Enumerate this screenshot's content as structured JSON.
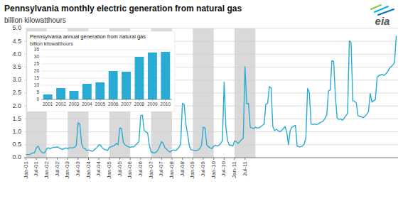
{
  "chart_data": [
    {
      "type": "line",
      "title": "Pennsylvania monthly electric generation from natural gas",
      "ylabel": "billion kilowatthours",
      "annotations": [
        "eia"
      ],
      "color": "#29ABD4",
      "grid": true,
      "ylim": [
        0,
        5.0
      ],
      "yticks": [
        {
          "value": 0.0,
          "label": "0.0"
        },
        {
          "value": 0.5,
          "label": "0.5"
        },
        {
          "value": 1.0,
          "label": "1.0"
        },
        {
          "value": 1.5,
          "label": "1.5"
        },
        {
          "value": 2.0,
          "label": "2.0"
        },
        {
          "value": 2.5,
          "label": "2.5"
        },
        {
          "value": 3.0,
          "label": "3.0"
        },
        {
          "value": 3.5,
          "label": "3.5"
        },
        {
          "value": 4.0,
          "label": "4.0"
        },
        {
          "value": 4.5,
          "label": "4.5"
        },
        {
          "value": 5.0,
          "label": "5.0"
        }
      ],
      "bands": [
        {
          "from": 0,
          "to": 12,
          "color": "#d9d9d9"
        },
        {
          "from": 24,
          "to": 36,
          "color": "#d9d9d9"
        },
        {
          "from": 48,
          "to": 60,
          "color": "#d9d9d9"
        },
        {
          "from": 72,
          "to": 84,
          "color": "#d9d9d9"
        },
        {
          "from": 96,
          "to": 108,
          "color": "#d9d9d9"
        },
        {
          "from": 120,
          "to": 132,
          "color": "#d9d9d9"
        }
      ],
      "categories": [
        "Jan-01",
        null,
        null,
        null,
        null,
        null,
        "Jul-01",
        null,
        null,
        null,
        null,
        null,
        "Jan-02",
        null,
        null,
        null,
        null,
        null,
        "Jul-02",
        null,
        null,
        null,
        null,
        null,
        "Jan-03",
        null,
        null,
        null,
        null,
        null,
        "Jul-03",
        null,
        null,
        null,
        null,
        null,
        "Jan-04",
        null,
        null,
        null,
        null,
        null,
        "Jul-04",
        null,
        null,
        null,
        null,
        null,
        "Jan-05",
        null,
        null,
        null,
        null,
        null,
        "Jul-05",
        null,
        null,
        null,
        null,
        null,
        "Jan-06",
        null,
        null,
        null,
        null,
        null,
        "Jul-06",
        null,
        null,
        null,
        null,
        null,
        "Jan-07",
        null,
        null,
        null,
        null,
        null,
        "Jul-07",
        null,
        null,
        null,
        null,
        null,
        "Jan-08",
        null,
        null,
        null,
        null,
        null,
        "Jul-08",
        null,
        null,
        null,
        null,
        null,
        "Jan-09",
        null,
        null,
        null,
        null,
        null,
        "Jul-09",
        null,
        null,
        null,
        null,
        null,
        "Jan-10",
        null,
        null,
        null,
        null,
        null,
        "Jul-10",
        null,
        null,
        null,
        null,
        null,
        "Jan-11",
        null,
        null,
        null,
        null,
        null,
        "Jul-11",
        null,
        null,
        null,
        null,
        null,
        null,
        null,
        null,
        null,
        null,
        null,
        null,
        null,
        null,
        null,
        null,
        null,
        null,
        null,
        null,
        null,
        null,
        null,
        null,
        null,
        null,
        null,
        null,
        null,
        null,
        null,
        null,
        null,
        null,
        null,
        null,
        null,
        null,
        null,
        null,
        null,
        null,
        null,
        null,
        null,
        null,
        null,
        null,
        null,
        null,
        null,
        null,
        null,
        null,
        null,
        null,
        null,
        null,
        null,
        null,
        null,
        null,
        null,
        null,
        null,
        null,
        null,
        null,
        null,
        null,
        null,
        null,
        null,
        null,
        null,
        null,
        null,
        null,
        null,
        null,
        null,
        null,
        null,
        null,
        null,
        null,
        null
      ],
      "values": [
        0.12,
        0.12,
        0.12,
        0.15,
        0.18,
        0.2,
        0.38,
        0.45,
        0.3,
        0.22,
        0.18,
        0.2,
        0.35,
        0.38,
        0.35,
        0.38,
        0.4,
        0.4,
        0.42,
        0.38,
        0.35,
        0.32,
        0.35,
        0.38,
        0.35,
        0.38,
        0.38,
        0.38,
        0.4,
        0.48,
        1.35,
        1.3,
        0.55,
        0.38,
        0.35,
        0.28,
        0.3,
        0.28,
        0.25,
        0.28,
        0.35,
        0.4,
        0.5,
        0.48,
        0.38,
        0.32,
        0.3,
        0.28,
        0.4,
        0.42,
        0.45,
        0.48,
        0.55,
        0.5,
        1.15,
        1.12,
        0.6,
        0.5,
        0.45,
        0.42,
        0.4,
        0.42,
        0.42,
        0.48,
        0.55,
        0.62,
        1.62,
        1.65,
        1.05,
        1.0,
        0.95,
        0.48,
        0.22,
        0.2,
        0.18,
        0.22,
        0.3,
        0.45,
        0.62,
        0.55,
        0.38,
        0.32,
        0.25,
        0.22,
        0.28,
        0.3,
        0.28,
        0.32,
        0.4,
        0.52,
        2.1,
        2.05,
        1.3,
        0.9,
        0.45,
        0.3,
        0.3,
        0.28,
        0.28,
        0.3,
        0.35,
        0.48,
        1.18,
        1.15,
        0.5,
        0.42,
        0.38,
        0.35,
        0.45,
        0.48,
        0.45,
        0.48,
        0.55,
        0.65,
        2.92,
        1.18,
        0.65,
        0.48,
        0.48,
        0.45,
        0.65,
        0.62,
        0.55,
        0.62,
        0.7,
        0.75,
        3.52,
        2.08,
        2.1,
        1.18,
        1.15,
        1.12,
        1.18,
        1.15,
        1.15,
        1.2,
        1.25,
        1.3,
        2.07,
        2.1,
        2.75,
        2.7,
        1.2,
        1.05,
        1.1,
        1.05,
        1.0,
        1.05,
        1.12,
        1.2,
        1.0,
        0.5,
        1.05,
        1.18,
        1.22,
        1.25,
        0.45,
        0.42,
        0.42,
        0.45,
        0.52,
        0.75,
        2.68,
        2.52,
        1.3,
        1.28,
        1.3,
        1.28,
        1.3,
        1.35,
        1.38,
        1.42,
        1.52,
        1.65,
        2.58,
        2.62,
        3.75,
        3.72,
        2.35,
        1.52,
        1.48,
        1.5,
        1.45,
        1.52,
        1.62,
        1.72,
        4.52,
        4.45,
        2.2,
        2.18,
        2.12,
        1.62,
        1.6,
        1.58,
        1.55,
        1.6,
        1.68,
        1.78,
        2.48,
        2.15,
        2.2,
        2.25,
        3.12,
        3.18,
        3.2,
        3.22,
        3.18,
        3.25,
        3.32,
        3.45,
        3.52,
        3.58,
        3.68,
        4.72
      ]
    },
    {
      "type": "bar",
      "title": "Pennsylvania annual generation from natural gas",
      "ylabel": "billion kilowatthours",
      "color": "#29ABD4",
      "grid": true,
      "categories": [
        "2001",
        "2002",
        "2003",
        "2004",
        "2005",
        "2006",
        "2007",
        "2008",
        "2009",
        "2010"
      ],
      "values": [
        3.5,
        8,
        6,
        11,
        12,
        20,
        19.5,
        30,
        33,
        33.5
      ],
      "ylim": [
        0,
        35
      ],
      "yticks": [
        0,
        5,
        10,
        15,
        20,
        25,
        30,
        35
      ]
    }
  ]
}
